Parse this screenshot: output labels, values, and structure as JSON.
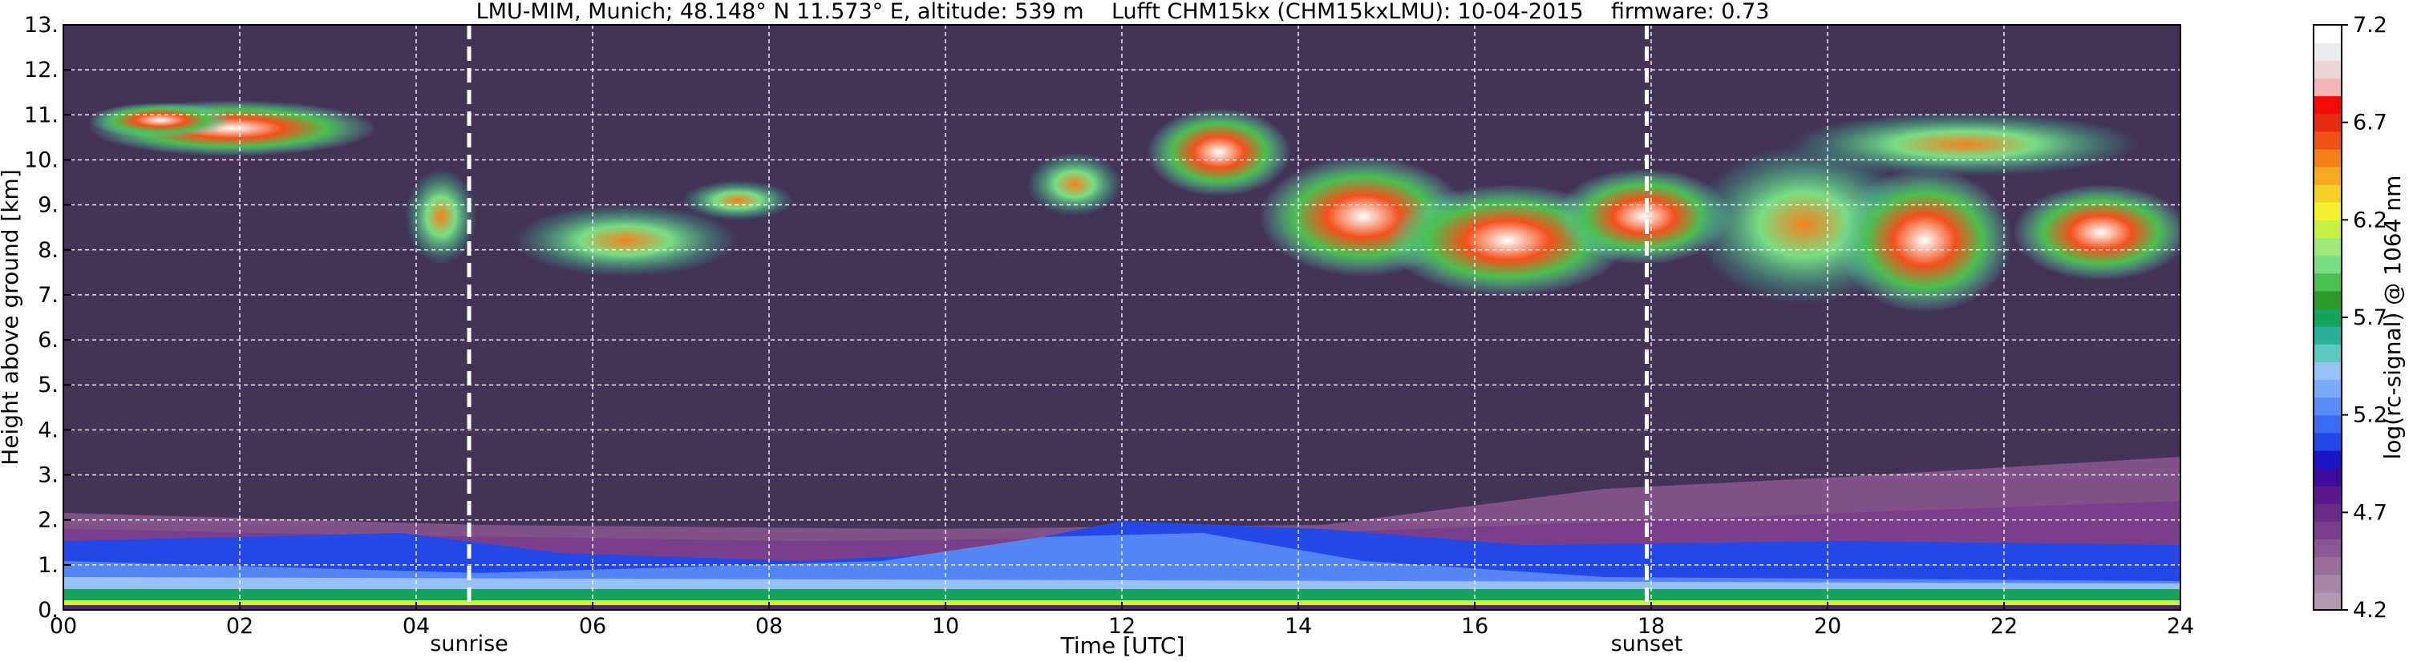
{
  "chart_data": {
    "type": "heatmap",
    "title": "LMU-MIM, Munich; 48.148° N 11.573° E, altitude: 539 m    Lufft CHM15kx (CHM15kxLMU): 10-04-2015    firmware: 0.73",
    "xlabel": "Time [UTC]",
    "ylabel": "Height above ground [km]",
    "xlim": [
      0,
      24
    ],
    "ylim": [
      0,
      13
    ],
    "x_ticks": [
      0,
      2,
      4,
      6,
      8,
      10,
      12,
      14,
      16,
      18,
      20,
      22,
      24
    ],
    "x_tick_labels": [
      "00",
      "02",
      "04",
      "06",
      "08",
      "10",
      "12",
      "14",
      "16",
      "18",
      "20",
      "22",
      "24"
    ],
    "y_ticks": [
      0,
      1,
      2,
      3,
      4,
      5,
      6,
      7,
      8,
      9,
      10,
      11,
      12,
      13
    ],
    "y_tick_labels": [
      "0.",
      "1.",
      "2.",
      "3.",
      "4.",
      "5.",
      "6.",
      "7.",
      "8.",
      "9.",
      "10.",
      "11.",
      "12.",
      "13."
    ],
    "grid": true,
    "markers": [
      {
        "label": "sunrise",
        "x": 4.6
      },
      {
        "label": "sunset",
        "x": 17.95
      }
    ],
    "colorbar": {
      "label": "log(rc-signal) @ 1064 nm",
      "min": 4.2,
      "max": 7.2,
      "ticks": [
        4.2,
        4.7,
        5.2,
        5.7,
        6.2,
        6.7,
        7.2
      ],
      "tick_labels": [
        "4.2",
        "4.7",
        "5.2",
        "5.7",
        "6.2",
        "6.7",
        "7.2"
      ],
      "colors": [
        "#b39ab0",
        "#a886a7",
        "#9a6f9c",
        "#8c5893",
        "#7a3f8a",
        "#6a2a86",
        "#5a188c",
        "#3a0c9c",
        "#1a16c8",
        "#2448e6",
        "#3a6cf2",
        "#5a8cf6",
        "#7aaaf8",
        "#98c2f6",
        "#5fc8c0",
        "#2ab09a",
        "#17a35c",
        "#2b9a2a",
        "#4cc050",
        "#7ade84",
        "#9ee87c",
        "#c8f044",
        "#f2f230",
        "#f6d02a",
        "#f6aa22",
        "#f4801c",
        "#ee5216",
        "#e42c10",
        "#f40a08",
        "#f2b6b6",
        "#efd6d6",
        "#ececec",
        "#ffffff"
      ]
    }
  }
}
